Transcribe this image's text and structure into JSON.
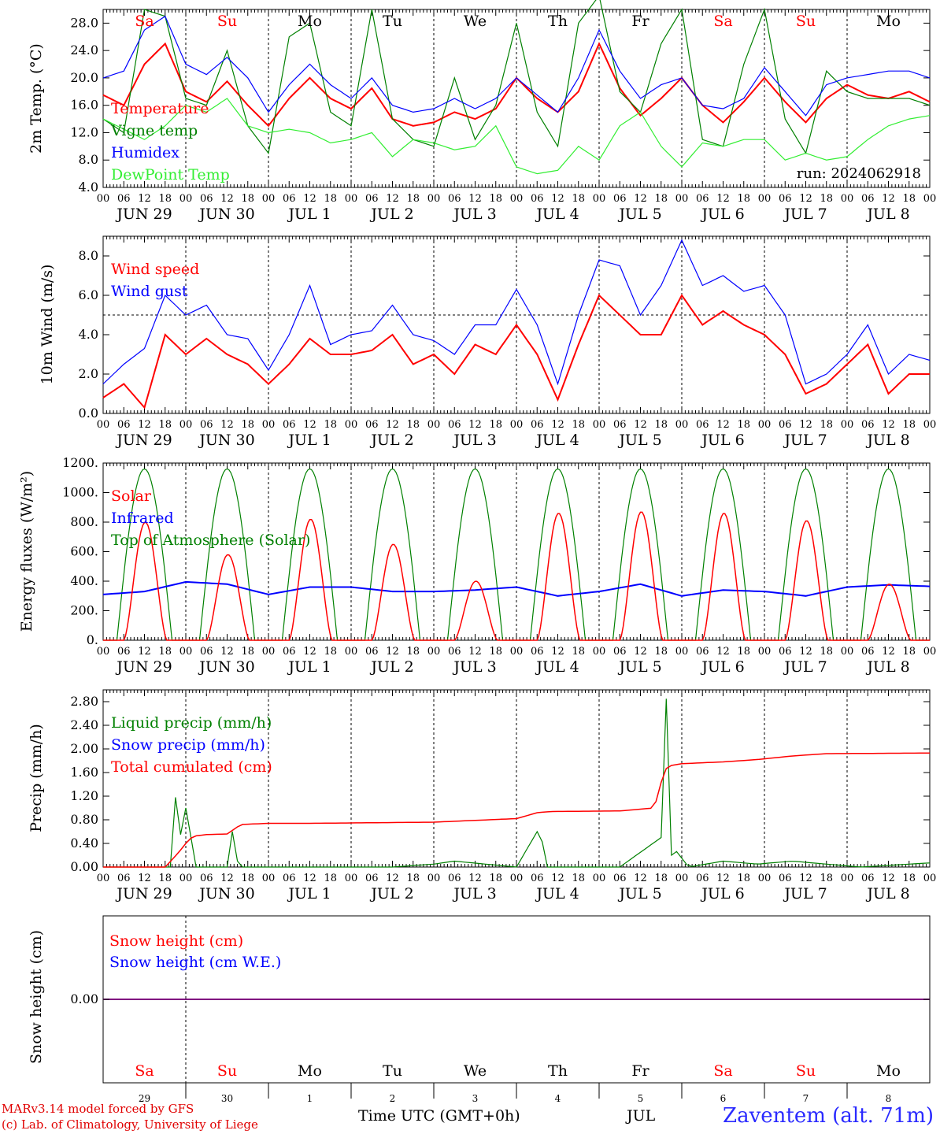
{
  "footer": {
    "credit_line1": "MARv3.14 model forced by GFS",
    "credit_line2": "(c) Lab. of Climatology, University of Liege",
    "time_axis_label": "Time UTC (GMT+0h)",
    "month_label": "JUL",
    "station": "Zaventem (alt. 71m)"
  },
  "colors": {
    "red": "#ff0000",
    "green": "#008000",
    "blue": "#0000ff",
    "lightgreen": "#33ee33",
    "weekend": "#ff0000",
    "purple": "#7f007f"
  },
  "chart_data": [
    {
      "type": "line",
      "ylabel": "2m Temp. (°C)",
      "ylim": [
        4,
        30
      ],
      "yticks": [
        "4.0",
        "8.0",
        "12.0",
        "16.0",
        "20.0",
        "24.0",
        "28.0"
      ],
      "run_label": "run: 2024062918",
      "hour_ticks": [
        "00",
        "06",
        "12",
        "18"
      ],
      "day_labels": [
        "JUN 29",
        "JUN 30",
        "JUL  1",
        "JUL  2",
        "JUL  3",
        "JUL  4",
        "JUL  5",
        "JUL  6",
        "JUL  7",
        "JUL  8"
      ],
      "weekday_labels": [
        "Sa",
        "Su",
        "Mo",
        "Tu",
        "We",
        "Th",
        "Fr",
        "Sa",
        "Su",
        "Mo"
      ],
      "x_hours_start": 0,
      "x_hours_end": 240,
      "series": [
        {
          "name": "Temperature",
          "color": "red",
          "x": [
            0,
            6,
            12,
            18,
            24,
            30,
            36,
            42,
            48,
            54,
            60,
            66,
            72,
            78,
            84,
            90,
            96,
            102,
            108,
            114,
            120,
            126,
            132,
            138,
            144,
            150,
            156,
            162,
            168,
            174,
            180,
            186,
            192,
            198,
            204,
            210,
            216,
            222,
            228,
            234,
            240
          ],
          "values": [
            17.5,
            16,
            22,
            25,
            18,
            16.5,
            19.5,
            16,
            13,
            17,
            20,
            17,
            15.5,
            18.5,
            14,
            13,
            13.5,
            15,
            14,
            15.5,
            20,
            17,
            15,
            18,
            25,
            18.5,
            14.5,
            17,
            20,
            16,
            13.5,
            16.5,
            20,
            16.5,
            13.5,
            17,
            19,
            17.5,
            17,
            18,
            16.5
          ]
        },
        {
          "name": "Vigne temp",
          "color": "green",
          "x": [
            0,
            6,
            12,
            18,
            24,
            30,
            36,
            42,
            48,
            54,
            60,
            66,
            72,
            78,
            84,
            90,
            96,
            102,
            108,
            114,
            120,
            126,
            132,
            138,
            144,
            150,
            156,
            162,
            168,
            174,
            180,
            186,
            192,
            198,
            204,
            210,
            216,
            222,
            228,
            234,
            240
          ],
          "values": [
            14,
            12,
            30,
            29,
            17,
            16,
            24,
            13,
            9,
            26,
            28,
            15,
            13,
            30,
            14,
            11,
            10,
            20,
            11,
            16,
            28,
            15,
            10,
            28,
            32,
            18,
            15,
            25,
            30,
            11,
            10,
            22,
            30,
            14,
            9,
            21,
            18,
            17,
            17,
            17,
            16
          ]
        },
        {
          "name": "Humidex",
          "color": "blue",
          "x": [
            0,
            6,
            12,
            18,
            24,
            30,
            36,
            42,
            48,
            54,
            60,
            66,
            72,
            78,
            84,
            90,
            96,
            102,
            108,
            114,
            120,
            126,
            132,
            138,
            144,
            150,
            156,
            162,
            168,
            174,
            180,
            186,
            192,
            198,
            204,
            210,
            216,
            222,
            228,
            234,
            240
          ],
          "values": [
            20,
            21,
            27,
            29,
            22,
            20.5,
            23,
            20,
            15,
            19,
            22,
            19,
            17,
            20,
            16,
            15,
            15.5,
            17,
            15.5,
            17,
            20,
            17.5,
            15,
            20,
            27,
            21,
            17,
            19,
            20,
            16,
            15.5,
            17,
            21.5,
            18,
            14.5,
            19,
            20,
            20.5,
            21,
            21,
            20
          ]
        },
        {
          "name": "DewPoint Temp",
          "color": "lightgreen",
          "x": [
            0,
            6,
            12,
            18,
            24,
            30,
            36,
            42,
            48,
            54,
            60,
            66,
            72,
            78,
            84,
            90,
            96,
            102,
            108,
            114,
            120,
            126,
            132,
            138,
            144,
            150,
            156,
            162,
            168,
            174,
            180,
            186,
            192,
            198,
            204,
            210,
            216,
            222,
            228,
            234,
            240
          ],
          "values": [
            14,
            12.5,
            11,
            13,
            16,
            15,
            17,
            13,
            12,
            12.5,
            12,
            10.5,
            11,
            12,
            8.5,
            11,
            10.5,
            9.5,
            10,
            13,
            7,
            6,
            6.5,
            10,
            8,
            13,
            15,
            10,
            7,
            10.5,
            10,
            11,
            11,
            8,
            9,
            8,
            8.5,
            11,
            13,
            14,
            14.5
          ]
        }
      ]
    },
    {
      "type": "line",
      "ylabel": "10m Wind (m/s)",
      "ylim": [
        0,
        9
      ],
      "yticks": [
        "0.0",
        "2.0",
        "4.0",
        "6.0",
        "8.0"
      ],
      "reference_line": 5.0,
      "series": [
        {
          "name": "Wind speed",
          "color": "red",
          "x": [
            0,
            6,
            12,
            18,
            24,
            30,
            36,
            42,
            48,
            54,
            60,
            66,
            72,
            78,
            84,
            90,
            96,
            102,
            108,
            114,
            120,
            126,
            132,
            138,
            144,
            150,
            156,
            162,
            168,
            174,
            180,
            186,
            192,
            198,
            204,
            210,
            216,
            222,
            228,
            234,
            240
          ],
          "values": [
            0.8,
            1.5,
            0.3,
            4,
            3,
            3.8,
            3,
            2.5,
            1.5,
            2.5,
            3.8,
            3,
            3,
            3.2,
            4,
            2.5,
            3,
            2,
            3.5,
            3,
            4.5,
            3,
            0.7,
            3.5,
            6,
            5,
            4,
            4,
            6,
            4.5,
            5.2,
            4.5,
            4,
            3,
            1,
            1.5,
            2.5,
            3.5,
            1,
            2,
            2
          ]
        },
        {
          "name": "Wind gust",
          "color": "blue",
          "x": [
            0,
            6,
            12,
            18,
            24,
            30,
            36,
            42,
            48,
            54,
            60,
            66,
            72,
            78,
            84,
            90,
            96,
            102,
            108,
            114,
            120,
            126,
            132,
            138,
            144,
            150,
            156,
            162,
            168,
            174,
            180,
            186,
            192,
            198,
            204,
            210,
            216,
            222,
            228,
            234,
            240
          ],
          "values": [
            1.5,
            2.5,
            3.3,
            6,
            5,
            5.5,
            4,
            3.8,
            2.2,
            4,
            6.5,
            3.5,
            4,
            4.2,
            5.5,
            4,
            3.7,
            3,
            4.5,
            4.5,
            6.3,
            4.5,
            1.5,
            5,
            7.8,
            7.5,
            5,
            6.5,
            8.8,
            6.5,
            7,
            6.2,
            6.5,
            5,
            1.5,
            2,
            3,
            4.5,
            2,
            3,
            2.7
          ]
        }
      ]
    },
    {
      "type": "line",
      "ylabel": "Energy fluxes (W/m²)",
      "ylim": [
        0,
        1200
      ],
      "yticks": [
        "0.",
        "200.",
        "400.",
        "600.",
        "800.",
        "1000.",
        "1200."
      ],
      "series": [
        {
          "name": "Solar",
          "color": "red",
          "day_peaks": [
            800,
            580,
            820,
            650,
            400,
            860,
            870,
            860,
            810,
            380
          ]
        },
        {
          "name": "Infrared",
          "color": "blue",
          "x": [
            0,
            12,
            24,
            36,
            48,
            60,
            72,
            84,
            96,
            108,
            120,
            132,
            144,
            156,
            168,
            180,
            192,
            204,
            216,
            228,
            240
          ],
          "values": [
            310,
            330,
            395,
            380,
            310,
            360,
            360,
            330,
            330,
            340,
            360,
            300,
            330,
            380,
            300,
            340,
            330,
            300,
            360,
            375,
            365
          ]
        },
        {
          "name": "Top of Atmosphere (Solar)",
          "color": "green",
          "day_peak": 1160
        }
      ]
    },
    {
      "type": "line",
      "ylabel": "Precip (mm/h)",
      "ylim": [
        0,
        3.0
      ],
      "yticks": [
        "0.00",
        "0.40",
        "0.80",
        "1.20",
        "1.60",
        "2.00",
        "2.40",
        "2.80"
      ],
      "series": [
        {
          "name": "Liquid precip (mm/h)",
          "color": "green",
          "x": [
            0,
            20,
            21,
            22,
            23,
            24,
            25,
            26,
            27,
            28,
            36,
            38,
            39,
            40,
            44,
            60,
            84,
            96,
            102,
            120,
            126,
            127,
            128,
            129,
            130,
            150,
            162,
            163,
            164,
            165,
            166,
            170,
            180,
            190,
            200,
            220,
            240
          ],
          "values": [
            0,
            0,
            1.18,
            0.9,
            0.2,
            1.0,
            0.8,
            0.2,
            0,
            0,
            0,
            0.8,
            0.1,
            0,
            0,
            0,
            0,
            0.05,
            0.1,
            0,
            0.6,
            0.65,
            0.2,
            0,
            0,
            0,
            0.5,
            2.9,
            2.8,
            0.2,
            0.3,
            0,
            0.1,
            0.05,
            0.1,
            0,
            0.07
          ]
        },
        {
          "name": "Snow precip (mm/h)",
          "color": "blue",
          "values": []
        },
        {
          "name": "Total cumulated (cm)",
          "color": "red",
          "x": [
            0,
            18,
            22,
            24,
            26,
            30,
            36,
            40,
            48,
            60,
            96,
            120,
            126,
            130,
            150,
            160,
            163,
            165,
            168,
            180,
            190,
            200,
            210,
            240
          ],
          "values": [
            0,
            0,
            0.25,
            0.4,
            0.52,
            0.55,
            0.56,
            0.72,
            0.74,
            0.74,
            0.76,
            0.82,
            0.92,
            0.94,
            0.95,
            1.0,
            1.65,
            1.72,
            1.75,
            1.78,
            1.82,
            1.88,
            1.92,
            1.93
          ]
        }
      ]
    },
    {
      "type": "line",
      "ylabel": "Snow height (cm)",
      "yticks": [
        "0.00"
      ],
      "series": [
        {
          "name": "Snow height (cm)",
          "color": "red",
          "values": [
            0
          ]
        },
        {
          "name": "Snow height (cm W.E.)",
          "color": "blue",
          "values": [
            0
          ]
        }
      ],
      "day_numbers": [
        "29",
        "30",
        "1",
        "2",
        "3",
        "4",
        "5",
        "6",
        "7",
        "8"
      ]
    }
  ]
}
